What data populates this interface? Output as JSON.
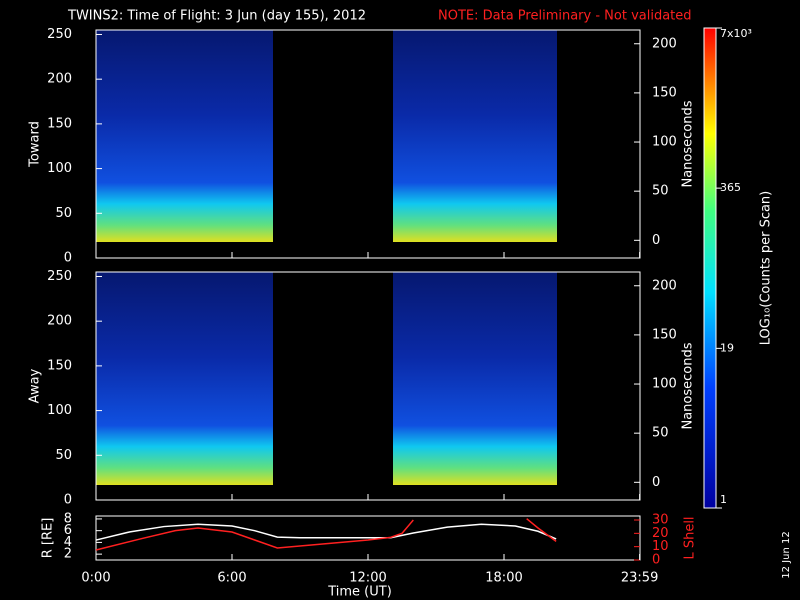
{
  "chart_data": [
    {
      "type": "heatmap",
      "title": "TWINS2: Time of Flight:  3 Jun (day 155), 2012",
      "note": "NOTE: Data Preliminary - Not validated",
      "y_label": "Toward",
      "ylim": [
        0,
        255
      ],
      "yticks": [
        0,
        50,
        100,
        150,
        200,
        250
      ],
      "y2_label": "Nanoseconds",
      "y2lim": [
        -18,
        214
      ],
      "y2ticks": [
        0,
        50,
        100,
        150,
        200
      ]
    },
    {
      "type": "heatmap",
      "y_label": "Away",
      "ylim": [
        0,
        255
      ],
      "yticks": [
        0,
        50,
        100,
        150,
        200,
        250
      ],
      "y2_label": "Nanoseconds",
      "y2lim": [
        -18,
        214
      ],
      "y2ticks": [
        0,
        50,
        100,
        150,
        200
      ]
    },
    {
      "type": "line",
      "x_label": "Time (UT)",
      "date_stamp": "12 Jun 12",
      "xlim": [
        0,
        24
      ],
      "xticks": [
        {
          "value": 0,
          "label": "0:00"
        },
        {
          "value": 6,
          "label": "6:00"
        },
        {
          "value": 12,
          "label": "12:00"
        },
        {
          "value": 18,
          "label": "18:00"
        },
        {
          "value": 23.983,
          "label": "23:59"
        }
      ],
      "ylim": [
        1,
        8.5
      ],
      "yticks": [
        2,
        4,
        6,
        8
      ],
      "y2lim": [
        0,
        33
      ],
      "y2ticks": [
        0,
        10,
        20,
        30
      ],
      "series": [
        {
          "name": "R [RE]",
          "color": "#ffffff",
          "axis": "y",
          "x": [
            0,
            1.5,
            3,
            4.5,
            6,
            7,
            8,
            9,
            11,
            13,
            14,
            15.5,
            17,
            18.5,
            19.5,
            20.3
          ],
          "values": [
            4.4,
            5.8,
            6.7,
            7.1,
            6.8,
            6.0,
            4.9,
            4.8,
            4.8,
            4.8,
            5.6,
            6.6,
            7.1,
            6.8,
            5.9,
            4.6
          ]
        },
        {
          "name": "L Shell",
          "color": "#ff2020",
          "axis": "y2",
          "x": [
            0,
            2,
            3.5,
            4.5,
            6,
            7,
            8,
            10,
            12,
            13,
            13.5,
            14,
            16.5,
            19,
            19.5,
            20.3
          ],
          "values": [
            7.5,
            16,
            22,
            24,
            21,
            15,
            9,
            12,
            15,
            17,
            20,
            30,
            null,
            31,
            24,
            14
          ]
        }
      ]
    },
    {
      "type": "colorbar",
      "label": "LOG₁₀(Counts per Scan)",
      "log": true,
      "lim": [
        1,
        7000
      ],
      "ticks": [
        {
          "value": 7000,
          "label": "7x10³"
        },
        365,
        19,
        1
      ]
    }
  ]
}
